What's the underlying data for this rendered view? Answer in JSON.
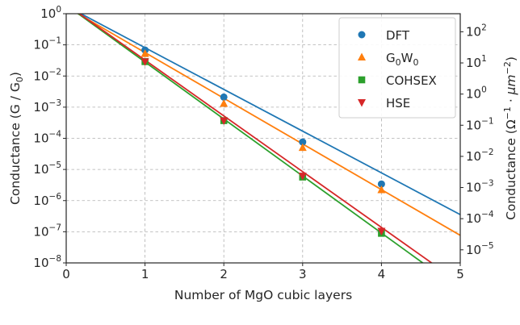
{
  "chart_data": {
    "type": "line",
    "x": [
      1,
      2,
      3,
      4
    ],
    "xlim": [
      0,
      5
    ],
    "ylim": [
      1e-08,
      1
    ],
    "yscale": "log",
    "grid": true,
    "legend_position": "top-right",
    "xlabel": "Number of MgO cubic layers",
    "ylabel": {
      "main": "Conductance (G / G",
      "sub": "0",
      "close": ")"
    },
    "y2label": {
      "pre": "Conductance (Ω",
      "sup1": "−1",
      "mid": " · ",
      "unit": "μm",
      "sup2": "−2",
      "close": ")"
    },
    "x_tick_labels": [
      "0",
      "1",
      "2",
      "3",
      "4",
      "5"
    ],
    "y_ticks": [
      {
        "base": "10",
        "exp": "0"
      },
      {
        "base": "10",
        "exp": "−1"
      },
      {
        "base": "10",
        "exp": "−2"
      },
      {
        "base": "10",
        "exp": "−3"
      },
      {
        "base": "10",
        "exp": "−4"
      },
      {
        "base": "10",
        "exp": "−5"
      },
      {
        "base": "10",
        "exp": "−6"
      },
      {
        "base": "10",
        "exp": "−7"
      },
      {
        "base": "10",
        "exp": "−8"
      }
    ],
    "y2_ticks": [
      {
        "base": "10",
        "exp": "2"
      },
      {
        "base": "10",
        "exp": "1"
      },
      {
        "base": "10",
        "exp": "0"
      },
      {
        "base": "10",
        "exp": "−1"
      },
      {
        "base": "10",
        "exp": "−2"
      },
      {
        "base": "10",
        "exp": "−3"
      },
      {
        "base": "10",
        "exp": "−4"
      },
      {
        "base": "10",
        "exp": "−5"
      }
    ],
    "y2_log_offset": -2.58,
    "series": [
      {
        "name": "DFT",
        "legend": {
          "main": "DFT"
        },
        "marker": "circle",
        "color": "#1f77b4",
        "values": [
          0.068,
          0.0021,
          7.6e-05,
          3.4e-06
        ],
        "fit": {
          "log10_intercept": 0.25,
          "log10_slope": -1.34
        }
      },
      {
        "name": "G0W0",
        "legend": {
          "main": "G",
          "sub1": "0",
          "mid": "W",
          "sub2": "0"
        },
        "marker": "triangle-up",
        "color": "#ff7f0e",
        "values": [
          0.052,
          0.0013,
          5e-05,
          2.2e-06
        ],
        "fit": {
          "log10_intercept": 0.22,
          "log10_slope": -1.467
        }
      },
      {
        "name": "COHSEX",
        "legend": {
          "main": "COHSEX"
        },
        "marker": "square",
        "color": "#2ca02c",
        "values": [
          0.029,
          0.00037,
          5.7e-06,
          8.9e-08
        ],
        "fit": {
          "log10_intercept": 0.28,
          "log10_slope": -1.83
        }
      },
      {
        "name": "HSE",
        "legend": {
          "main": "HSE"
        },
        "marker": "triangle-down",
        "color": "#d62728",
        "values": [
          0.029,
          0.00037,
          6.2e-06,
          1.05e-07
        ],
        "fit": {
          "log10_intercept": 0.3,
          "log10_slope": -1.79
        }
      }
    ]
  }
}
